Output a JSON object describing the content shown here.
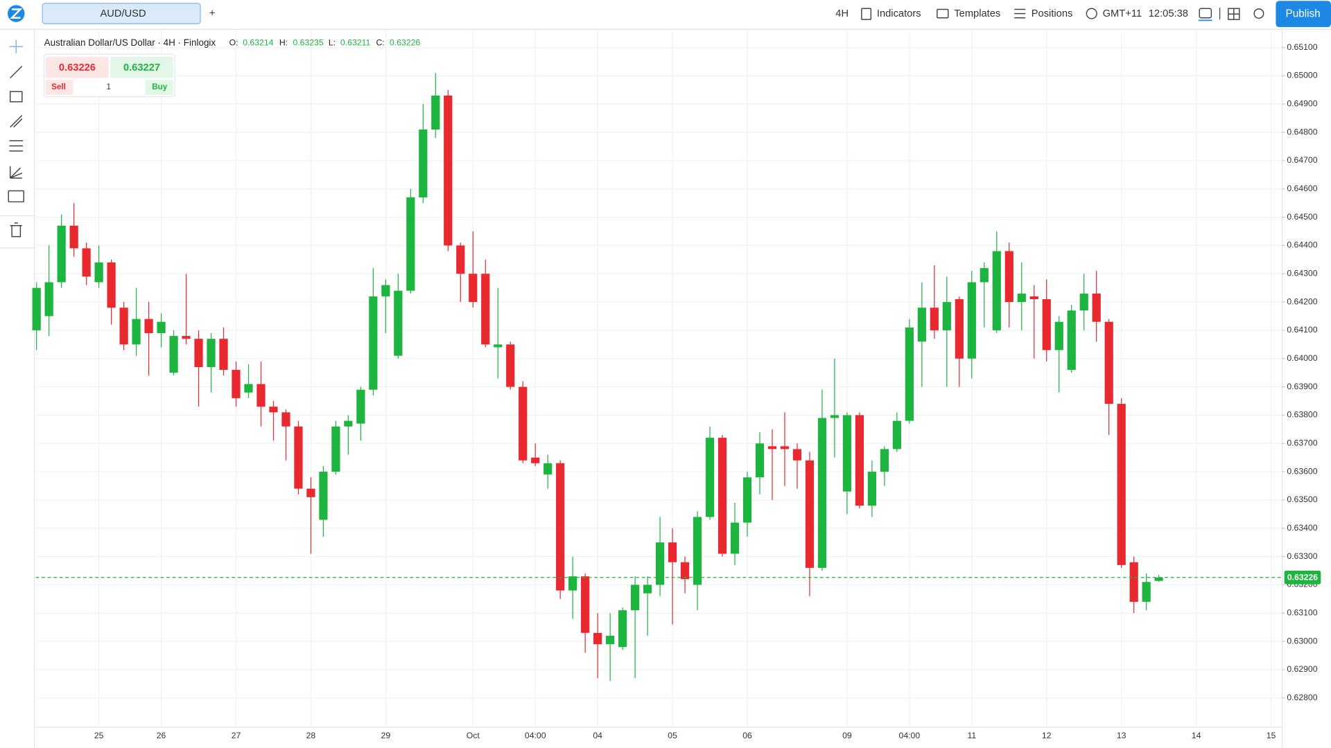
{
  "toolbar": {
    "tab": "AUD/USD",
    "add": "+",
    "interval": "4H",
    "menu": [
      "Indicators",
      "Templates",
      "Positions"
    ],
    "timezone": "GMT+11",
    "clock": "12:05:38",
    "publish": "Publish"
  },
  "trade_panel": {
    "sell_price": 0.63226,
    "buy_price": 0.63227,
    "sell": "Sell",
    "quantity": 1,
    "buy": "Buy"
  },
  "chart_data": {
    "type": "candlestick",
    "title": "Australian Dollar/US Dollar · 4H · Finlogix",
    "ohlc_labels": [
      "O:",
      "H:",
      "L:",
      "C:"
    ],
    "ohlc_values": [
      0.63214,
      0.63235,
      0.63211,
      0.63226
    ],
    "up_color": "#1db53f",
    "down_color": "#e8292f",
    "last_price": 0.63226,
    "open": [
      0.641,
      0.6415,
      0.6427,
      0.6447,
      0.6439,
      0.6427,
      0.6434,
      0.6418,
      0.6405,
      0.6414,
      0.6409,
      0.6395,
      0.6408,
      0.6407,
      0.6397,
      0.6407,
      0.6396,
      0.6388,
      0.6391,
      0.6383,
      0.6381,
      0.6376,
      0.6354,
      0.6343,
      0.636,
      0.6376,
      0.6377,
      0.6389,
      0.6422,
      0.6401,
      0.6424,
      0.6457,
      0.6481,
      0.6493,
      0.644,
      0.643,
      0.643,
      0.6404,
      0.6405,
      0.639,
      0.6365,
      0.6359,
      0.6363,
      0.6318,
      0.6323,
      0.6303,
      0.6299,
      0.6298,
      0.6311,
      0.6317,
      0.632,
      0.6335,
      0.6328,
      0.632,
      0.6344,
      0.6372,
      0.6331,
      0.6342,
      0.6358,
      0.6369,
      0.6369,
      0.6368,
      0.6364,
      0.6326,
      0.6379,
      0.6353,
      0.638,
      0.6348,
      0.636,
      0.6368,
      0.6378,
      0.6406,
      0.6418,
      0.641,
      0.6421,
      0.64,
      0.6427,
      0.641,
      0.6438,
      0.642,
      0.6422,
      0.6421,
      0.6403,
      0.6396,
      0.6417,
      0.6423,
      0.6413,
      0.6384,
      0.6328,
      0.6314,
      0.63214
    ],
    "high": [
      0.6427,
      0.644,
      0.6451,
      0.6455,
      0.6441,
      0.644,
      0.6435,
      0.642,
      0.6425,
      0.642,
      0.6416,
      0.641,
      0.643,
      0.641,
      0.6409,
      0.6411,
      0.6399,
      0.6398,
      0.6399,
      0.6385,
      0.6382,
      0.6378,
      0.6358,
      0.6362,
      0.6378,
      0.638,
      0.639,
      0.6432,
      0.6428,
      0.643,
      0.646,
      0.649,
      0.6501,
      0.6495,
      0.6441,
      0.6445,
      0.6435,
      0.6425,
      0.6406,
      0.6392,
      0.637,
      0.6366,
      0.6364,
      0.633,
      0.6324,
      0.631,
      0.631,
      0.6312,
      0.6323,
      0.6323,
      0.6344,
      0.634,
      0.633,
      0.6346,
      0.6376,
      0.6373,
      0.6349,
      0.636,
      0.6374,
      0.6375,
      0.6381,
      0.637,
      0.6367,
      0.6389,
      0.64,
      0.6381,
      0.6381,
      0.6364,
      0.6369,
      0.6381,
      0.6414,
      0.6427,
      0.6433,
      0.6429,
      0.6422,
      0.6431,
      0.6434,
      0.6445,
      0.6441,
      0.6434,
      0.6426,
      0.6428,
      0.6415,
      0.6419,
      0.643,
      0.6431,
      0.6414,
      0.6386,
      0.633,
      0.6324,
      0.63235
    ],
    "low": [
      0.6403,
      0.6408,
      0.6425,
      0.6436,
      0.6426,
      0.6425,
      0.6412,
      0.6403,
      0.6401,
      0.6394,
      0.6404,
      0.6394,
      0.6405,
      0.6383,
      0.6388,
      0.6394,
      0.6383,
      0.6386,
      0.6376,
      0.6371,
      0.6364,
      0.6352,
      0.6331,
      0.6337,
      0.6359,
      0.6366,
      0.6371,
      0.6387,
      0.6409,
      0.64,
      0.6423,
      0.6455,
      0.6478,
      0.6438,
      0.642,
      0.6418,
      0.6404,
      0.6393,
      0.6389,
      0.6363,
      0.6362,
      0.6354,
      0.6315,
      0.6308,
      0.6296,
      0.6287,
      0.6286,
      0.6297,
      0.6287,
      0.6302,
      0.6316,
      0.6306,
      0.6317,
      0.6311,
      0.6343,
      0.633,
      0.6327,
      0.6337,
      0.6352,
      0.635,
      0.6355,
      0.6354,
      0.6316,
      0.6325,
      0.6365,
      0.6345,
      0.6347,
      0.6344,
      0.6355,
      0.6367,
      0.6377,
      0.639,
      0.6407,
      0.639,
      0.639,
      0.6393,
      0.6411,
      0.6409,
      0.6411,
      0.641,
      0.64,
      0.6399,
      0.6388,
      0.6395,
      0.641,
      0.6406,
      0.6373,
      0.6326,
      0.631,
      0.6311,
      0.63211
    ],
    "close": [
      0.6425,
      0.6427,
      0.6447,
      0.6439,
      0.6429,
      0.6434,
      0.6418,
      0.6405,
      0.6414,
      0.6409,
      0.6413,
      0.6408,
      0.6407,
      0.6397,
      0.6407,
      0.6396,
      0.6386,
      0.6391,
      0.6383,
      0.6381,
      0.6376,
      0.6354,
      0.6351,
      0.636,
      0.6376,
      0.6378,
      0.6389,
      0.6422,
      0.6426,
      0.6424,
      0.6457,
      0.6481,
      0.6493,
      0.644,
      0.643,
      0.642,
      0.6405,
      0.6405,
      0.639,
      0.6364,
      0.6363,
      0.6363,
      0.6318,
      0.6323,
      0.6303,
      0.6299,
      0.6302,
      0.6311,
      0.632,
      0.632,
      0.6335,
      0.6328,
      0.6322,
      0.6344,
      0.6372,
      0.6331,
      0.6342,
      0.6358,
      0.637,
      0.6368,
      0.6368,
      0.6364,
      0.6326,
      0.6379,
      0.638,
      0.638,
      0.6348,
      0.636,
      0.6368,
      0.6378,
      0.6411,
      0.6418,
      0.641,
      0.642,
      0.64,
      0.6427,
      0.6432,
      0.6438,
      0.642,
      0.6423,
      0.6421,
      0.6403,
      0.6413,
      0.6417,
      0.6423,
      0.6413,
      0.6384,
      0.6327,
      0.6314,
      0.6321,
      0.63226
    ],
    "xlim": [
      -0.07,
      99.86
    ],
    "xticks": [
      {
        "value": 5,
        "label": "25"
      },
      {
        "value": 10,
        "label": "26"
      },
      {
        "value": 16,
        "label": "27"
      },
      {
        "value": 22,
        "label": "28"
      },
      {
        "value": 28,
        "label": "29"
      },
      {
        "value": 35,
        "label": "Oct"
      },
      {
        "value": 40,
        "label": "04:00"
      },
      {
        "value": 45,
        "label": "04"
      },
      {
        "value": 51,
        "label": "05"
      },
      {
        "value": 57,
        "label": "06"
      },
      {
        "value": 65,
        "label": "09"
      },
      {
        "value": 70,
        "label": "04:00"
      },
      {
        "value": 75,
        "label": "11"
      },
      {
        "value": 81,
        "label": "12"
      },
      {
        "value": 87,
        "label": "13"
      },
      {
        "value": 93,
        "label": "14"
      },
      {
        "value": 99,
        "label": "15"
      }
    ],
    "ylim": [
      0.62698,
      0.6516
    ],
    "yticks": [
      {
        "value": 0.628,
        "label": "0.62800"
      },
      {
        "value": 0.629,
        "label": "0.62900"
      },
      {
        "value": 0.63,
        "label": "0.63000"
      },
      {
        "value": 0.631,
        "label": "0.63100"
      },
      {
        "value": 0.632,
        "label": "0.63200"
      },
      {
        "value": 0.633,
        "label": "0.63300"
      },
      {
        "value": 0.634,
        "label": "0.63400"
      },
      {
        "value": 0.635,
        "label": "0.63500"
      },
      {
        "value": 0.636,
        "label": "0.63600"
      },
      {
        "value": 0.637,
        "label": "0.63700"
      },
      {
        "value": 0.638,
        "label": "0.63800"
      },
      {
        "value": 0.639,
        "label": "0.63900"
      },
      {
        "value": 0.64,
        "label": "0.64000"
      },
      {
        "value": 0.641,
        "label": "0.64100"
      },
      {
        "value": 0.642,
        "label": "0.64200"
      },
      {
        "value": 0.643,
        "label": "0.64300"
      },
      {
        "value": 0.644,
        "label": "0.64400"
      },
      {
        "value": 0.645,
        "label": "0.64500"
      },
      {
        "value": 0.646,
        "label": "0.64600"
      },
      {
        "value": 0.647,
        "label": "0.64700"
      },
      {
        "value": 0.648,
        "label": "0.64800"
      },
      {
        "value": 0.649,
        "label": "0.64900"
      },
      {
        "value": 0.65,
        "label": "0.65000"
      },
      {
        "value": 0.651,
        "label": "0.65100"
      }
    ],
    "grid": true
  }
}
